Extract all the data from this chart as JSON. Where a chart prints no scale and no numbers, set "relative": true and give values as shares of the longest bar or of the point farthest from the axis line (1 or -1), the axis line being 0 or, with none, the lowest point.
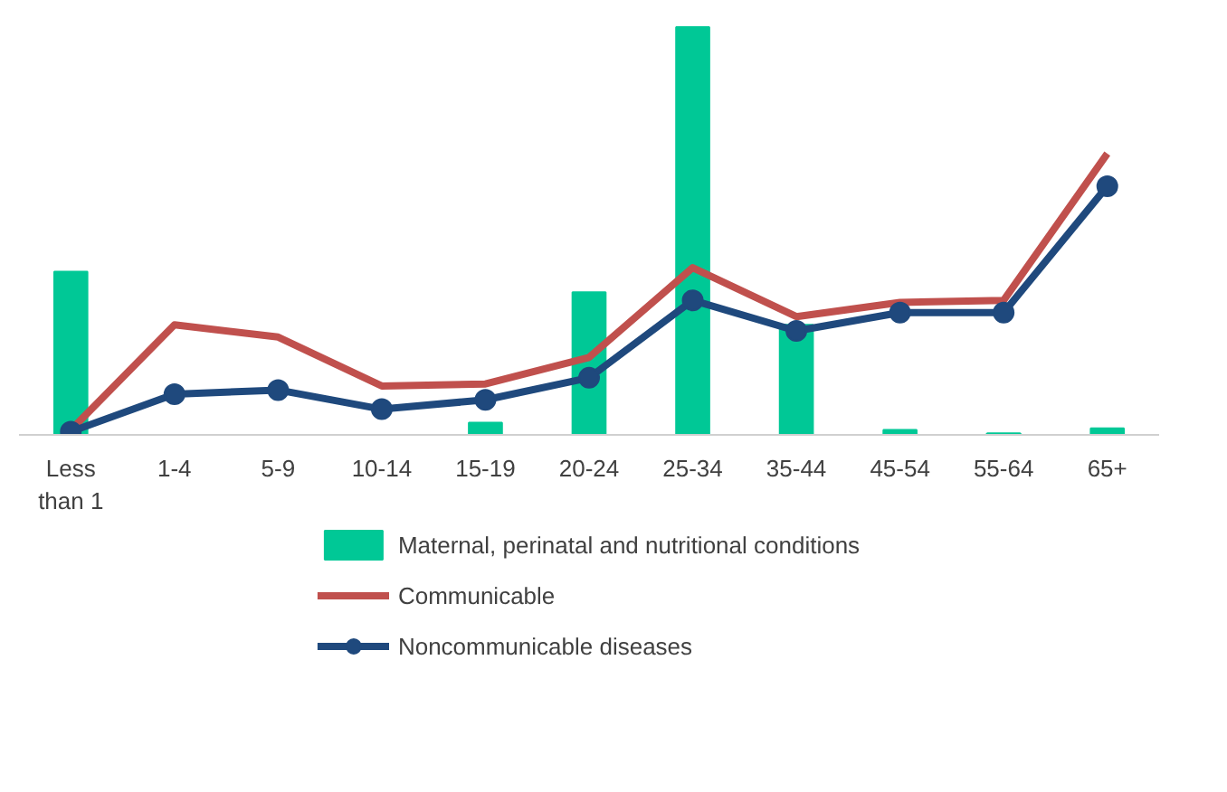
{
  "chart_data": {
    "type": "bar",
    "relative": true,
    "legend": "bottom",
    "grid": false,
    "categories": [
      "Less than 1",
      "1-4",
      "5-9",
      "10-14",
      "15-19",
      "20-24",
      "25-34",
      "35-44",
      "45-54",
      "55-64",
      "65+"
    ],
    "series": [
      {
        "name": "Maternal, perinatal and nutritional conditions",
        "type": "bar",
        "color": "#00c896",
        "values": [
          0.4,
          0,
          0,
          0,
          0.03,
          0.35,
          1,
          0.27,
          0.012,
          0.004,
          0.016
        ]
      },
      {
        "name": "Communicable",
        "type": "line",
        "color": "#c0504d",
        "marker": "none",
        "values": [
          0.012,
          0.27,
          0.24,
          0.12,
          0.125,
          0.19,
          0.41,
          0.29,
          0.325,
          0.33,
          0.69
        ]
      },
      {
        "name": "Noncommunicable diseases",
        "type": "line",
        "color": "#1f497d",
        "marker": "circle",
        "values": [
          0.008,
          0.1,
          0.11,
          0.063,
          0.086,
          0.14,
          0.33,
          0.255,
          0.3,
          0.3,
          0.61
        ]
      }
    ]
  }
}
